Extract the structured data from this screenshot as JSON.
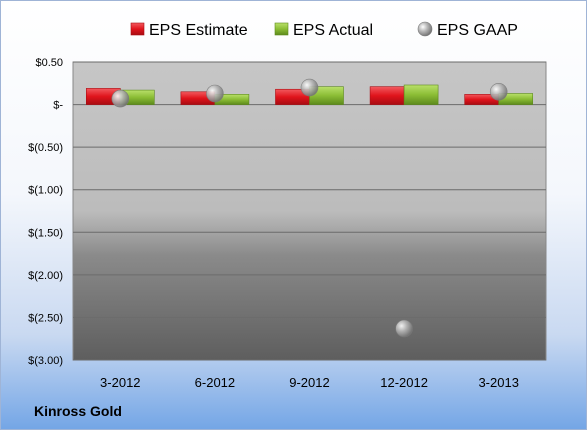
{
  "company": "Kinross Gold",
  "chart_data": {
    "type": "bar",
    "categories": [
      "3-2012",
      "6-2012",
      "9-2012",
      "12-2012",
      "3-2013"
    ],
    "series": [
      {
        "name": "EPS Estimate",
        "kind": "bar",
        "color": "#e8222a",
        "values": [
          0.19,
          0.15,
          0.18,
          0.21,
          0.12
        ]
      },
      {
        "name": "EPS Actual",
        "kind": "bar",
        "color": "#8fc33a",
        "values": [
          0.17,
          0.12,
          0.21,
          0.23,
          0.13
        ]
      },
      {
        "name": "EPS GAAP",
        "kind": "scatter",
        "color": "#b0b0b0",
        "values": [
          0.07,
          0.13,
          0.2,
          -2.63,
          0.15
        ]
      }
    ],
    "yticks": [
      0.5,
      0,
      -0.5,
      -1,
      -1.5,
      -2,
      -2.5,
      -3
    ],
    "ytick_labels": [
      "$0.50",
      "$-",
      "$(0.50)",
      "$(1.00)",
      "$(1.50)",
      "$(2.00)",
      "$(2.50)",
      "$(3.00)"
    ],
    "ylim": [
      -3,
      0.5
    ],
    "legend_position": "top",
    "grid": true
  }
}
